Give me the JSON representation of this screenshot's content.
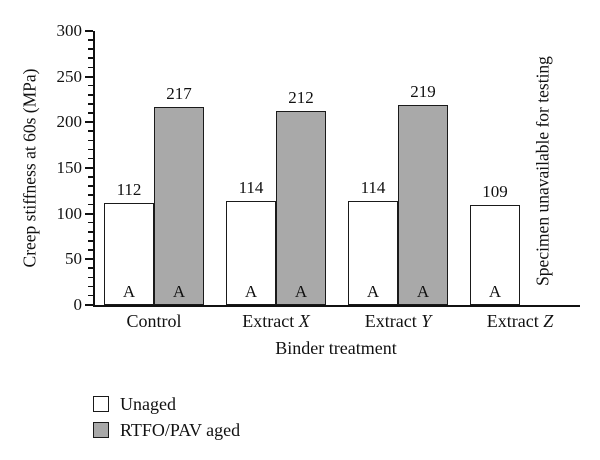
{
  "figure": {
    "background": "#ffffff",
    "text_color": "#111111",
    "bar_border_color": "#1a1a1a"
  },
  "chart_data": {
    "type": "bar",
    "title": "",
    "xlabel": "Binder treatment",
    "ylabel": "Creep stiffness at 60s (MPa)",
    "ylim": [
      0,
      300
    ],
    "yticks": [
      0,
      50,
      100,
      150,
      200,
      250,
      300
    ],
    "yminor_interval": 10,
    "grid": false,
    "legend_position": "bottom-left",
    "categories": [
      {
        "label": "Control",
        "italic_part": ""
      },
      {
        "label": "Extract",
        "italic_part": "X"
      },
      {
        "label": "Extract",
        "italic_part": "Y"
      },
      {
        "label": "Extract",
        "italic_part": "Z"
      }
    ],
    "series": [
      {
        "name": "Unaged",
        "color": "#ffffff",
        "values": [
          112,
          114,
          114,
          109
        ],
        "bar_letters": [
          "A",
          "A",
          "A",
          "A"
        ]
      },
      {
        "name": "RTFO/PAV aged",
        "color": "#a9a9a9",
        "values": [
          217,
          212,
          219,
          null
        ],
        "bar_letters": [
          "A",
          "A",
          "A",
          null
        ]
      }
    ],
    "missing_bar_annotation": {
      "series": "RTFO/PAV aged",
      "category": "Extract Z",
      "text": "Specimen unavailable for testing"
    }
  }
}
